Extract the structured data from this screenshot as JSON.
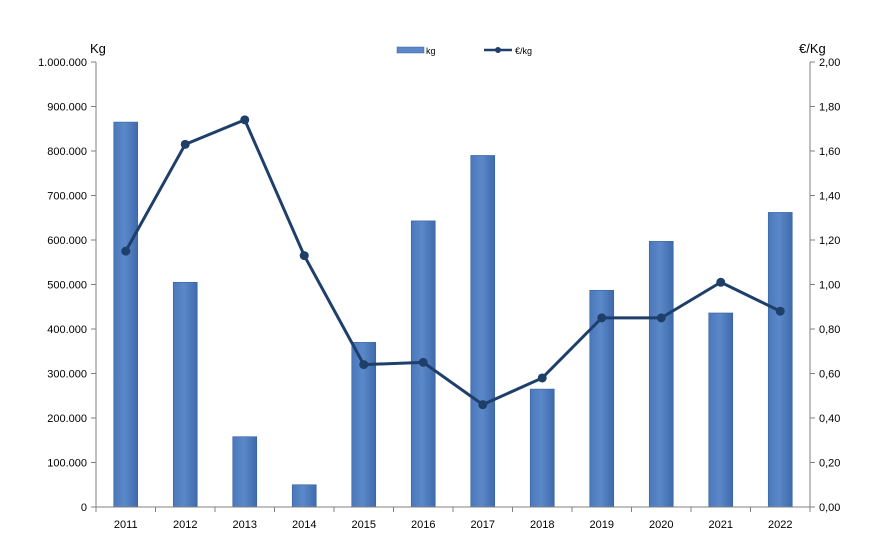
{
  "chart_data": {
    "type": "bar",
    "categories": [
      "2011",
      "2012",
      "2013",
      "2014",
      "2015",
      "2016",
      "2017",
      "2018",
      "2019",
      "2020",
      "2021",
      "2022"
    ],
    "series": [
      {
        "name": "kg",
        "type": "bar",
        "axis": "left",
        "values": [
          865000,
          505000,
          158000,
          50000,
          370000,
          643000,
          790000,
          265000,
          487000,
          597000,
          436000,
          662000
        ]
      },
      {
        "name": "€/kg",
        "type": "line",
        "axis": "right",
        "values": [
          1.15,
          1.63,
          1.74,
          1.13,
          0.64,
          0.65,
          0.46,
          0.58,
          0.85,
          0.85,
          1.01,
          0.88
        ]
      }
    ],
    "ylabel": "Kg",
    "ylabel_right": "€/Kg",
    "ylim": [
      0,
      1000000
    ],
    "ylim_right": [
      0,
      2
    ],
    "yticks": [
      "0",
      "100.000",
      "200.000",
      "300.000",
      "400.000",
      "500.000",
      "600.000",
      "700.000",
      "800.000",
      "900.000",
      "1.000.000"
    ],
    "yticks_right": [
      "0,00",
      "0,20",
      "0,40",
      "0,60",
      "0,80",
      "1,00",
      "1,20",
      "1,40",
      "1,60",
      "1,80",
      "2,00"
    ],
    "grid": false,
    "legend_position": "top-center",
    "colors": {
      "bar": "#5b88c8",
      "bar_edge": "#3a62a0",
      "line": "#1f3f6b"
    }
  }
}
